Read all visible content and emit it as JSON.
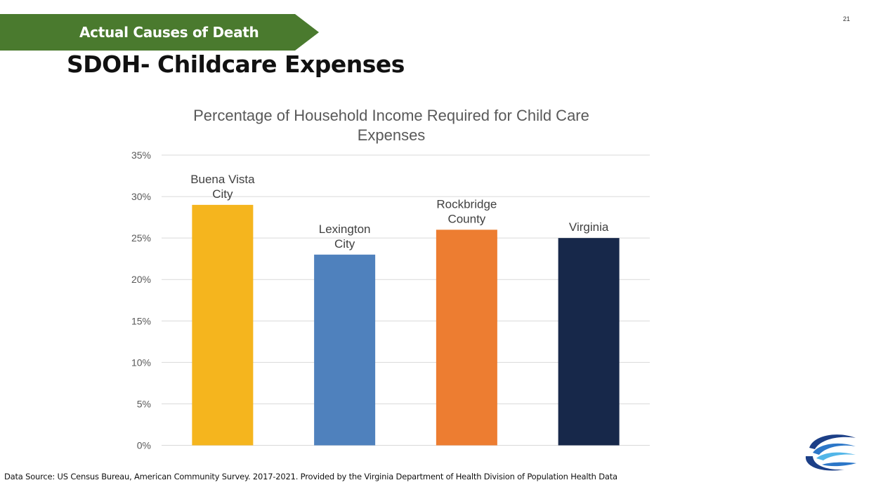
{
  "header": {
    "section_label": "Actual Causes of Death",
    "title": "SDOH- Childcare Expenses",
    "page_number": "21"
  },
  "colors": {
    "banner": "#4a7a2e",
    "grid": "#d9d9d9",
    "text": "#595959"
  },
  "chart_data": {
    "type": "bar",
    "title": [
      "Percentage of Household Income Required for Child Care",
      "Expenses"
    ],
    "categories": [
      [
        "Buena Vista",
        "City"
      ],
      [
        "Lexington",
        "City"
      ],
      [
        "Rockbridge",
        "County"
      ],
      [
        "Virginia"
      ]
    ],
    "values": [
      29,
      23,
      26,
      25
    ],
    "colors": [
      "#f5b51e",
      "#4f81bd",
      "#ed7d31",
      "#17284a"
    ],
    "ylim": [
      0,
      35
    ],
    "yticks": [
      0,
      5,
      10,
      15,
      20,
      25,
      30,
      35
    ],
    "ytick_labels": [
      "0%",
      "5%",
      "10%",
      "15%",
      "20%",
      "25%",
      "30%",
      "35%"
    ],
    "grid": true,
    "legend": "none",
    "xlabel": "",
    "ylabel": ""
  },
  "footer": {
    "source": "Data Source: US Census Bureau, American Community Survey. 2017-2021. Provided by the Virginia Department of Health Division of Population Health Data"
  },
  "logo": {
    "icon": "health-district-swoosh-logo"
  }
}
